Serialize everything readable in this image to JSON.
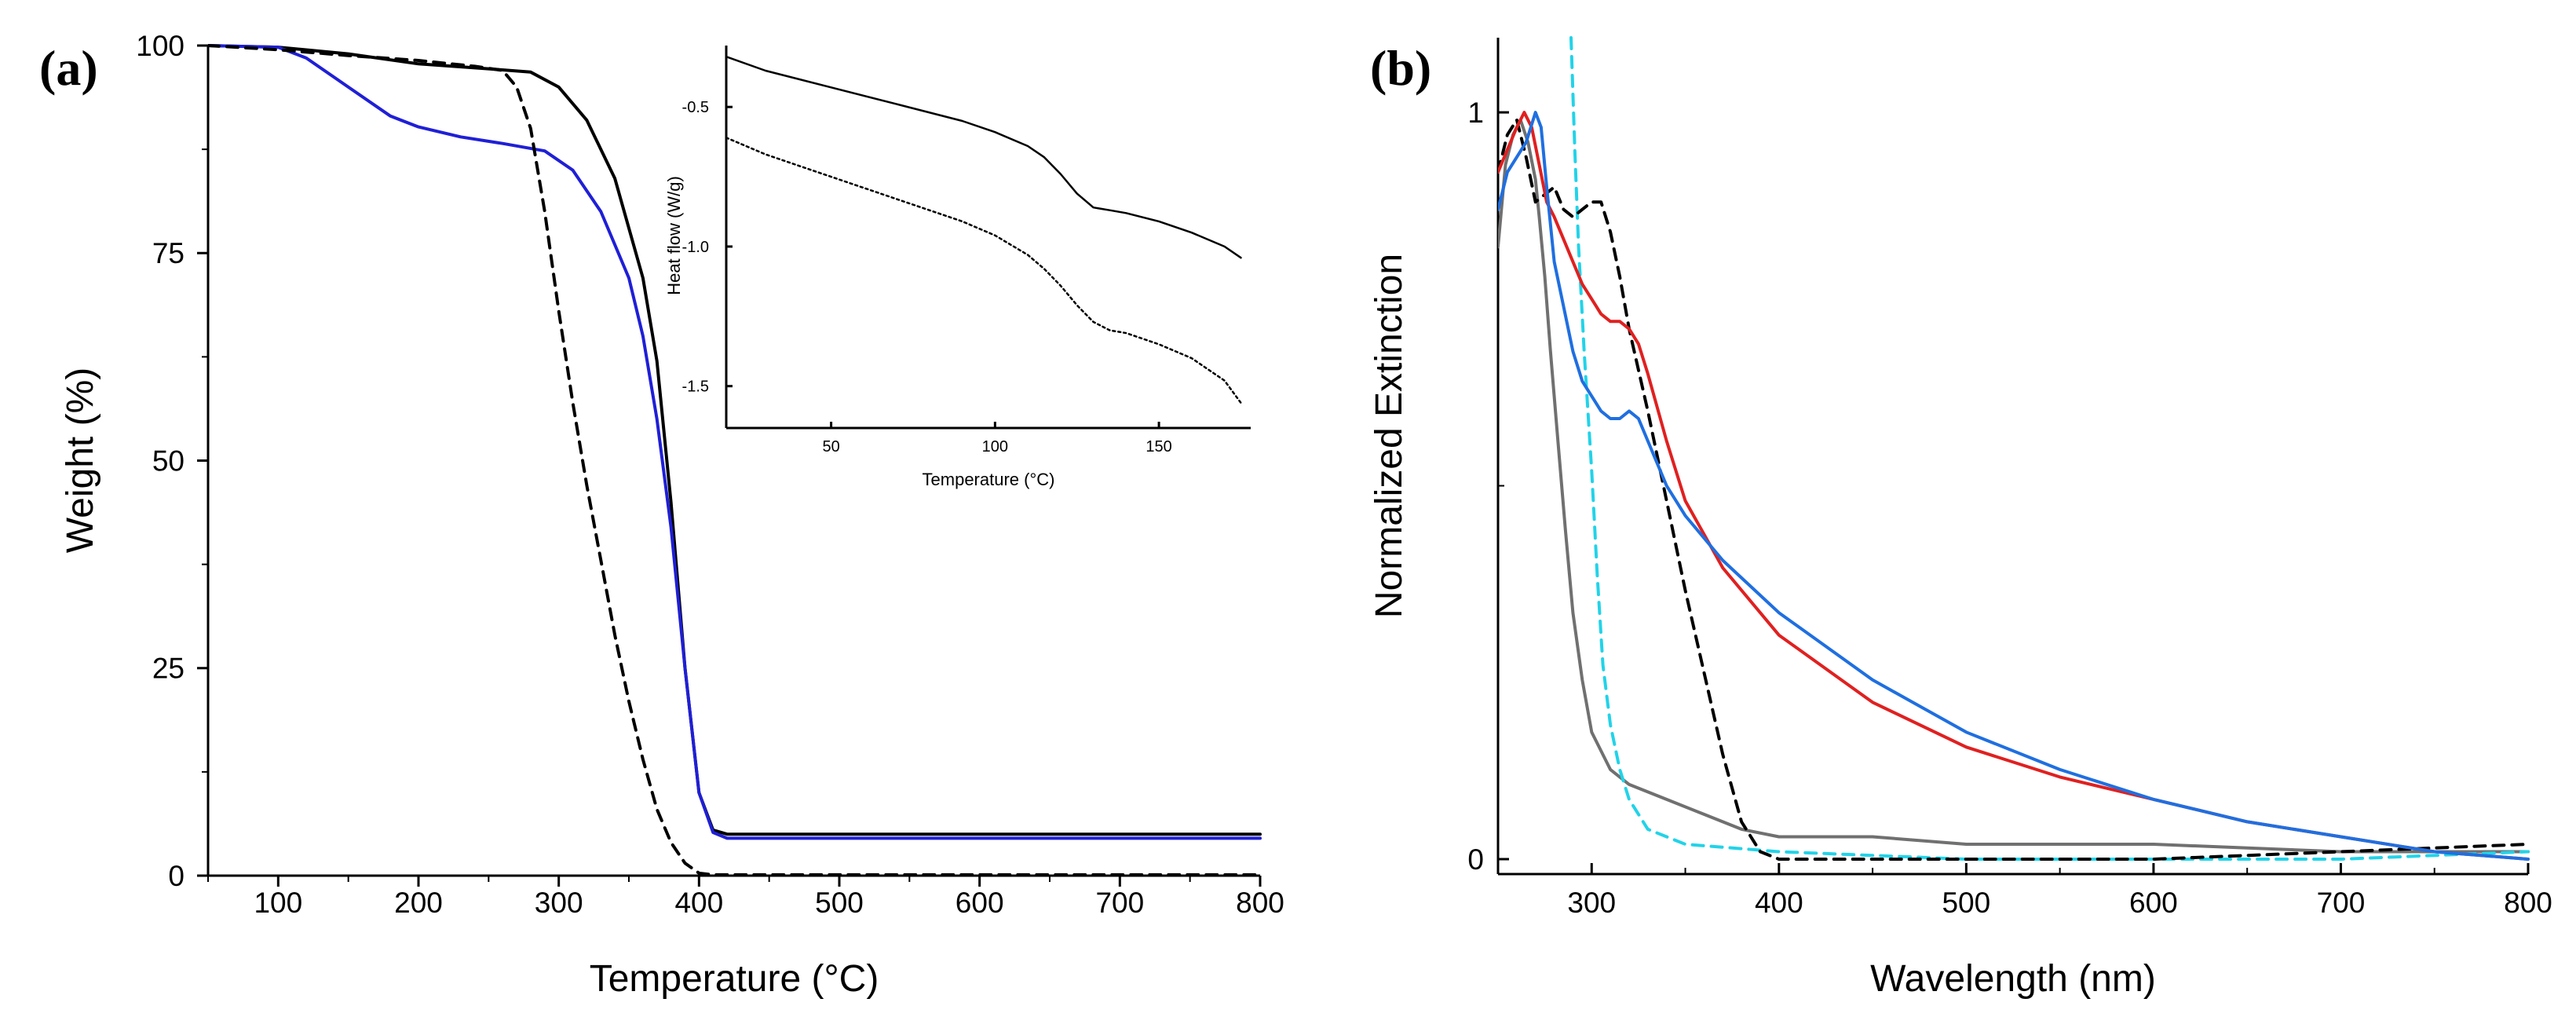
{
  "panels": {
    "a": {
      "label": "(a)"
    },
    "b": {
      "label": "(b)"
    }
  },
  "chart_data": [
    {
      "id": "a-main",
      "type": "line",
      "title": "",
      "xlabel": "Temperature (°C)",
      "ylabel": "Weight (%)",
      "xlim": [
        50,
        800
      ],
      "ylim": [
        0,
        100
      ],
      "xticks": [
        100,
        200,
        300,
        400,
        500,
        600,
        700,
        800
      ],
      "yticks": [
        0,
        25,
        50,
        75,
        100
      ],
      "xtick_labels": [
        "100",
        "200",
        "300",
        "400",
        "500",
        "600",
        "700",
        "800"
      ],
      "ytick_labels": [
        "0",
        "25",
        "50",
        "75",
        "100"
      ],
      "series": [
        {
          "name": "solid black",
          "color": "#000000",
          "dash": "solid",
          "x": [
            50,
            100,
            150,
            200,
            250,
            280,
            300,
            320,
            340,
            360,
            370,
            380,
            390,
            400,
            410,
            420,
            500,
            600,
            700,
            800
          ],
          "y": [
            100,
            99.8,
            99,
            97.8,
            97.2,
            96.8,
            95,
            91,
            84,
            72,
            62,
            45,
            25,
            10,
            5.5,
            5,
            5,
            5,
            5,
            5
          ]
        },
        {
          "name": "solid blue",
          "color": "#1f1fd6",
          "dash": "solid",
          "x": [
            50,
            100,
            120,
            150,
            180,
            200,
            230,
            260,
            290,
            310,
            330,
            350,
            360,
            370,
            380,
            390,
            400,
            410,
            420,
            500,
            600,
            700,
            800
          ],
          "y": [
            100,
            99.8,
            98.5,
            95,
            91.5,
            90.2,
            89,
            88.2,
            87.3,
            85,
            80,
            72,
            65,
            55,
            42,
            25,
            10,
            5.2,
            4.5,
            4.5,
            4.5,
            4.5,
            4.5
          ]
        },
        {
          "name": "dashed black",
          "color": "#000000",
          "dash": "dashed",
          "x": [
            50,
            100,
            150,
            200,
            240,
            260,
            270,
            280,
            290,
            300,
            310,
            320,
            330,
            340,
            350,
            360,
            370,
            380,
            390,
            400,
            410,
            500,
            600,
            700,
            800
          ],
          "y": [
            100,
            99.5,
            98.8,
            98.2,
            97.5,
            97,
            95,
            90,
            80,
            68,
            57,
            47,
            38,
            29,
            21,
            14,
            8,
            4,
            1.5,
            0.3,
            0.1,
            0.1,
            0.1,
            0.1,
            0.1
          ]
        }
      ]
    },
    {
      "id": "a-inset",
      "type": "line",
      "title": "",
      "xlabel": "Temperature (°C)",
      "ylabel": "Heat flow (W/g)",
      "xlim": [
        18,
        178
      ],
      "ylim": [
        -1.65,
        -0.28
      ],
      "xticks": [
        50,
        100,
        150
      ],
      "yticks": [
        -0.5,
        -1.0,
        -1.5
      ],
      "xtick_labels": [
        "50",
        "100",
        "150"
      ],
      "ytick_labels": [
        "-0.5",
        "-1.0",
        "-1.5"
      ],
      "series": [
        {
          "name": "solid",
          "color": "#000000",
          "dash": "solid",
          "x": [
            18,
            30,
            50,
            70,
            90,
            100,
            110,
            115,
            120,
            125,
            130,
            135,
            140,
            150,
            160,
            170,
            175
          ],
          "y": [
            -0.32,
            -0.37,
            -0.43,
            -0.49,
            -0.55,
            -0.59,
            -0.64,
            -0.68,
            -0.74,
            -0.81,
            -0.86,
            -0.87,
            -0.88,
            -0.91,
            -0.95,
            -1.0,
            -1.04
          ]
        },
        {
          "name": "dotted",
          "color": "#000000",
          "dash": "dotted",
          "x": [
            18,
            30,
            50,
            70,
            90,
            100,
            110,
            115,
            120,
            125,
            130,
            135,
            140,
            150,
            160,
            170,
            175
          ],
          "y": [
            -0.61,
            -0.67,
            -0.75,
            -0.83,
            -0.91,
            -0.96,
            -1.03,
            -1.08,
            -1.14,
            -1.21,
            -1.27,
            -1.3,
            -1.31,
            -1.35,
            -1.4,
            -1.48,
            -1.56
          ]
        }
      ]
    },
    {
      "id": "b-main",
      "type": "line",
      "title": "",
      "xlabel": "Wavelength (nm)",
      "ylabel": "Normalized Extinction",
      "xlim": [
        250,
        800
      ],
      "ylim": [
        -0.02,
        1.1
      ],
      "xticks": [
        300,
        400,
        500,
        600,
        700,
        800
      ],
      "yticks": [
        0,
        1
      ],
      "xtick_labels": [
        "300",
        "400",
        "500",
        "600",
        "700",
        "800"
      ],
      "ytick_labels": [
        "0",
        "1"
      ],
      "series": [
        {
          "name": "gray",
          "color": "#707070",
          "dash": "solid",
          "x": [
            250,
            254,
            258,
            262,
            266,
            270,
            272,
            275,
            278,
            282,
            286,
            290,
            295,
            300,
            310,
            320,
            340,
            360,
            380,
            400,
            450,
            500,
            600,
            700,
            800
          ],
          "y": [
            0.82,
            0.93,
            0.97,
            0.99,
            0.96,
            0.91,
            0.86,
            0.78,
            0.68,
            0.56,
            0.44,
            0.33,
            0.24,
            0.17,
            0.12,
            0.1,
            0.08,
            0.06,
            0.04,
            0.03,
            0.03,
            0.02,
            0.02,
            0.01,
            0.01
          ]
        },
        {
          "name": "cyan dashed",
          "color": "#22d3e8",
          "dash": "dashed",
          "x": [
            289,
            291,
            293,
            296,
            300,
            303,
            306,
            310,
            315,
            320,
            330,
            350,
            400,
            500,
            600,
            700,
            800
          ],
          "y": [
            1.1,
            0.95,
            0.82,
            0.68,
            0.52,
            0.38,
            0.26,
            0.18,
            0.12,
            0.08,
            0.04,
            0.02,
            0.01,
            0.0,
            0.0,
            0.0,
            0.01
          ]
        },
        {
          "name": "black dashed",
          "color": "#000000",
          "dash": "dashed",
          "x": [
            250,
            255,
            260,
            265,
            270,
            275,
            280,
            285,
            290,
            295,
            300,
            305,
            310,
            315,
            320,
            330,
            340,
            350,
            360,
            370,
            380,
            390,
            400,
            450,
            500,
            600,
            700,
            800
          ],
          "y": [
            0.92,
            0.97,
            0.99,
            0.94,
            0.88,
            0.89,
            0.9,
            0.87,
            0.86,
            0.87,
            0.88,
            0.88,
            0.84,
            0.78,
            0.71,
            0.6,
            0.48,
            0.36,
            0.25,
            0.14,
            0.05,
            0.01,
            0.0,
            0.0,
            0.0,
            0.0,
            0.01,
            0.02
          ]
        },
        {
          "name": "red",
          "color": "#e02020",
          "dash": "solid",
          "x": [
            250,
            255,
            260,
            264,
            268,
            272,
            276,
            280,
            285,
            290,
            295,
            300,
            305,
            310,
            315,
            320,
            325,
            330,
            340,
            350,
            370,
            400,
            450,
            500,
            550,
            600,
            650,
            700,
            750,
            800
          ],
          "y": [
            0.92,
            0.95,
            0.98,
            1.0,
            0.98,
            0.93,
            0.88,
            0.86,
            0.83,
            0.8,
            0.77,
            0.75,
            0.73,
            0.72,
            0.72,
            0.71,
            0.69,
            0.65,
            0.56,
            0.48,
            0.39,
            0.3,
            0.21,
            0.15,
            0.11,
            0.08,
            0.05,
            0.03,
            0.01,
            0.0
          ]
        },
        {
          "name": "blue",
          "color": "#1f6fe0",
          "dash": "solid",
          "x": [
            250,
            255,
            260,
            265,
            270,
            273,
            276,
            280,
            285,
            290,
            295,
            300,
            305,
            310,
            315,
            320,
            325,
            330,
            340,
            350,
            370,
            400,
            450,
            500,
            550,
            600,
            650,
            700,
            750,
            800
          ],
          "y": [
            0.87,
            0.92,
            0.94,
            0.96,
            1.0,
            0.98,
            0.9,
            0.8,
            0.74,
            0.68,
            0.64,
            0.62,
            0.6,
            0.59,
            0.59,
            0.6,
            0.59,
            0.56,
            0.5,
            0.46,
            0.4,
            0.33,
            0.24,
            0.17,
            0.12,
            0.08,
            0.05,
            0.03,
            0.01,
            0.0
          ]
        }
      ]
    }
  ]
}
